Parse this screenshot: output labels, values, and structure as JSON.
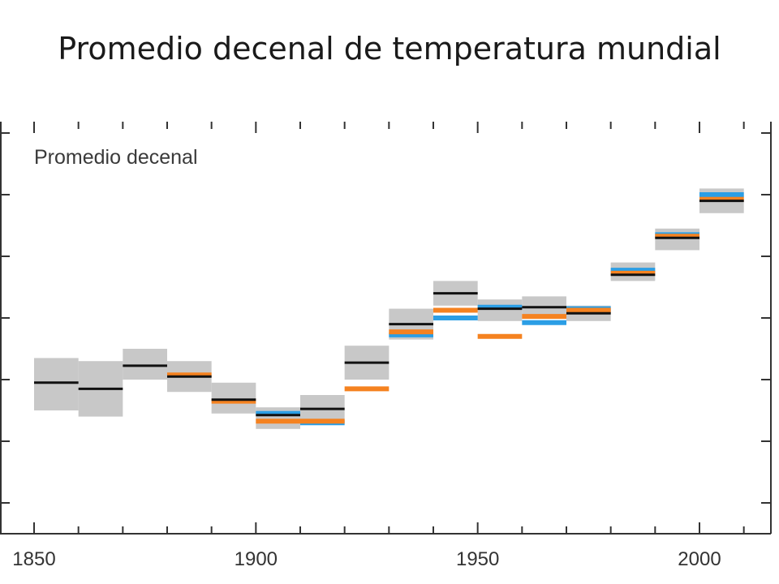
{
  "slide": {
    "title": "Promedio decenal de temperatura mundial"
  },
  "chart_data": {
    "type": "line",
    "title": "Promedio decenal de temperatura mundial",
    "annotation": "Promedio decenal",
    "xlabel": "",
    "ylabel": "",
    "xlim": [
      1850,
      2010
    ],
    "x_ticks": [
      1850,
      1900,
      1950,
      2000
    ],
    "ylim": [
      0,
      1
    ],
    "grid": false,
    "uncertainty_band_color": "#c8c8c8",
    "series": [
      {
        "color": "#111111",
        "style": "decade-step",
        "values": [
          {
            "start": 1850,
            "end": 1860,
            "y": 0.39
          },
          {
            "start": 1860,
            "end": 1870,
            "y": 0.37
          },
          {
            "start": 1870,
            "end": 1880,
            "y": 0.445
          },
          {
            "start": 1880,
            "end": 1890,
            "y": 0.41
          },
          {
            "start": 1890,
            "end": 1900,
            "y": 0.335
          },
          {
            "start": 1900,
            "end": 1910,
            "y": 0.285
          },
          {
            "start": 1910,
            "end": 1920,
            "y": 0.305
          },
          {
            "start": 1920,
            "end": 1930,
            "y": 0.455
          },
          {
            "start": 1930,
            "end": 1940,
            "y": 0.58
          },
          {
            "start": 1940,
            "end": 1950,
            "y": 0.68
          },
          {
            "start": 1950,
            "end": 1960,
            "y": 0.63
          },
          {
            "start": 1960,
            "end": 1970,
            "y": 0.635
          },
          {
            "start": 1970,
            "end": 1980,
            "y": 0.615
          },
          {
            "start": 1980,
            "end": 1990,
            "y": 0.74
          },
          {
            "start": 1990,
            "end": 2000,
            "y": 0.86
          },
          {
            "start": 2000,
            "end": 2010,
            "y": 0.98
          }
        ],
        "bands": [
          [
            0.3,
            0.47
          ],
          [
            0.28,
            0.46
          ],
          [
            0.4,
            0.5
          ],
          [
            0.36,
            0.46
          ],
          [
            0.29,
            0.39
          ],
          [
            0.24,
            0.31
          ],
          [
            0.26,
            0.35
          ],
          [
            0.4,
            0.51
          ],
          [
            0.53,
            0.63
          ],
          [
            0.64,
            0.72
          ],
          [
            0.59,
            0.66
          ],
          [
            0.6,
            0.67
          ],
          [
            0.59,
            0.64
          ],
          [
            0.72,
            0.78
          ],
          [
            0.82,
            0.89
          ],
          [
            0.94,
            1.02
          ]
        ]
      },
      {
        "color": "#f58220",
        "style": "decade-step",
        "values": [
          {
            "start": 1880,
            "end": 1890,
            "y": 0.415
          },
          {
            "start": 1890,
            "end": 1900,
            "y": 0.33
          },
          {
            "start": 1900,
            "end": 1910,
            "y": 0.265
          },
          {
            "start": 1910,
            "end": 1920,
            "y": 0.265
          },
          {
            "start": 1920,
            "end": 1930,
            "y": 0.37
          },
          {
            "start": 1930,
            "end": 1940,
            "y": 0.555
          },
          {
            "start": 1940,
            "end": 1950,
            "y": 0.625
          },
          {
            "start": 1950,
            "end": 1960,
            "y": 0.54
          },
          {
            "start": 1960,
            "end": 1970,
            "y": 0.605
          },
          {
            "start": 1970,
            "end": 1980,
            "y": 0.625
          },
          {
            "start": 1980,
            "end": 1990,
            "y": 0.745
          },
          {
            "start": 1990,
            "end": 2000,
            "y": 0.865
          },
          {
            "start": 2000,
            "end": 2010,
            "y": 0.985
          }
        ]
      },
      {
        "color": "#2b9ee5",
        "style": "decade-step",
        "values": [
          {
            "start": 1900,
            "end": 1910,
            "y": 0.29
          },
          {
            "start": 1910,
            "end": 1920,
            "y": 0.26
          },
          {
            "start": 1930,
            "end": 1940,
            "y": 0.545
          },
          {
            "start": 1940,
            "end": 1950,
            "y": 0.6
          },
          {
            "start": 1950,
            "end": 1960,
            "y": 0.635
          },
          {
            "start": 1960,
            "end": 1970,
            "y": 0.585
          },
          {
            "start": 1970,
            "end": 1980,
            "y": 0.63
          },
          {
            "start": 1980,
            "end": 1990,
            "y": 0.755
          },
          {
            "start": 1990,
            "end": 2000,
            "y": 0.87
          },
          {
            "start": 2000,
            "end": 2010,
            "y": 1.0
          }
        ]
      }
    ]
  }
}
